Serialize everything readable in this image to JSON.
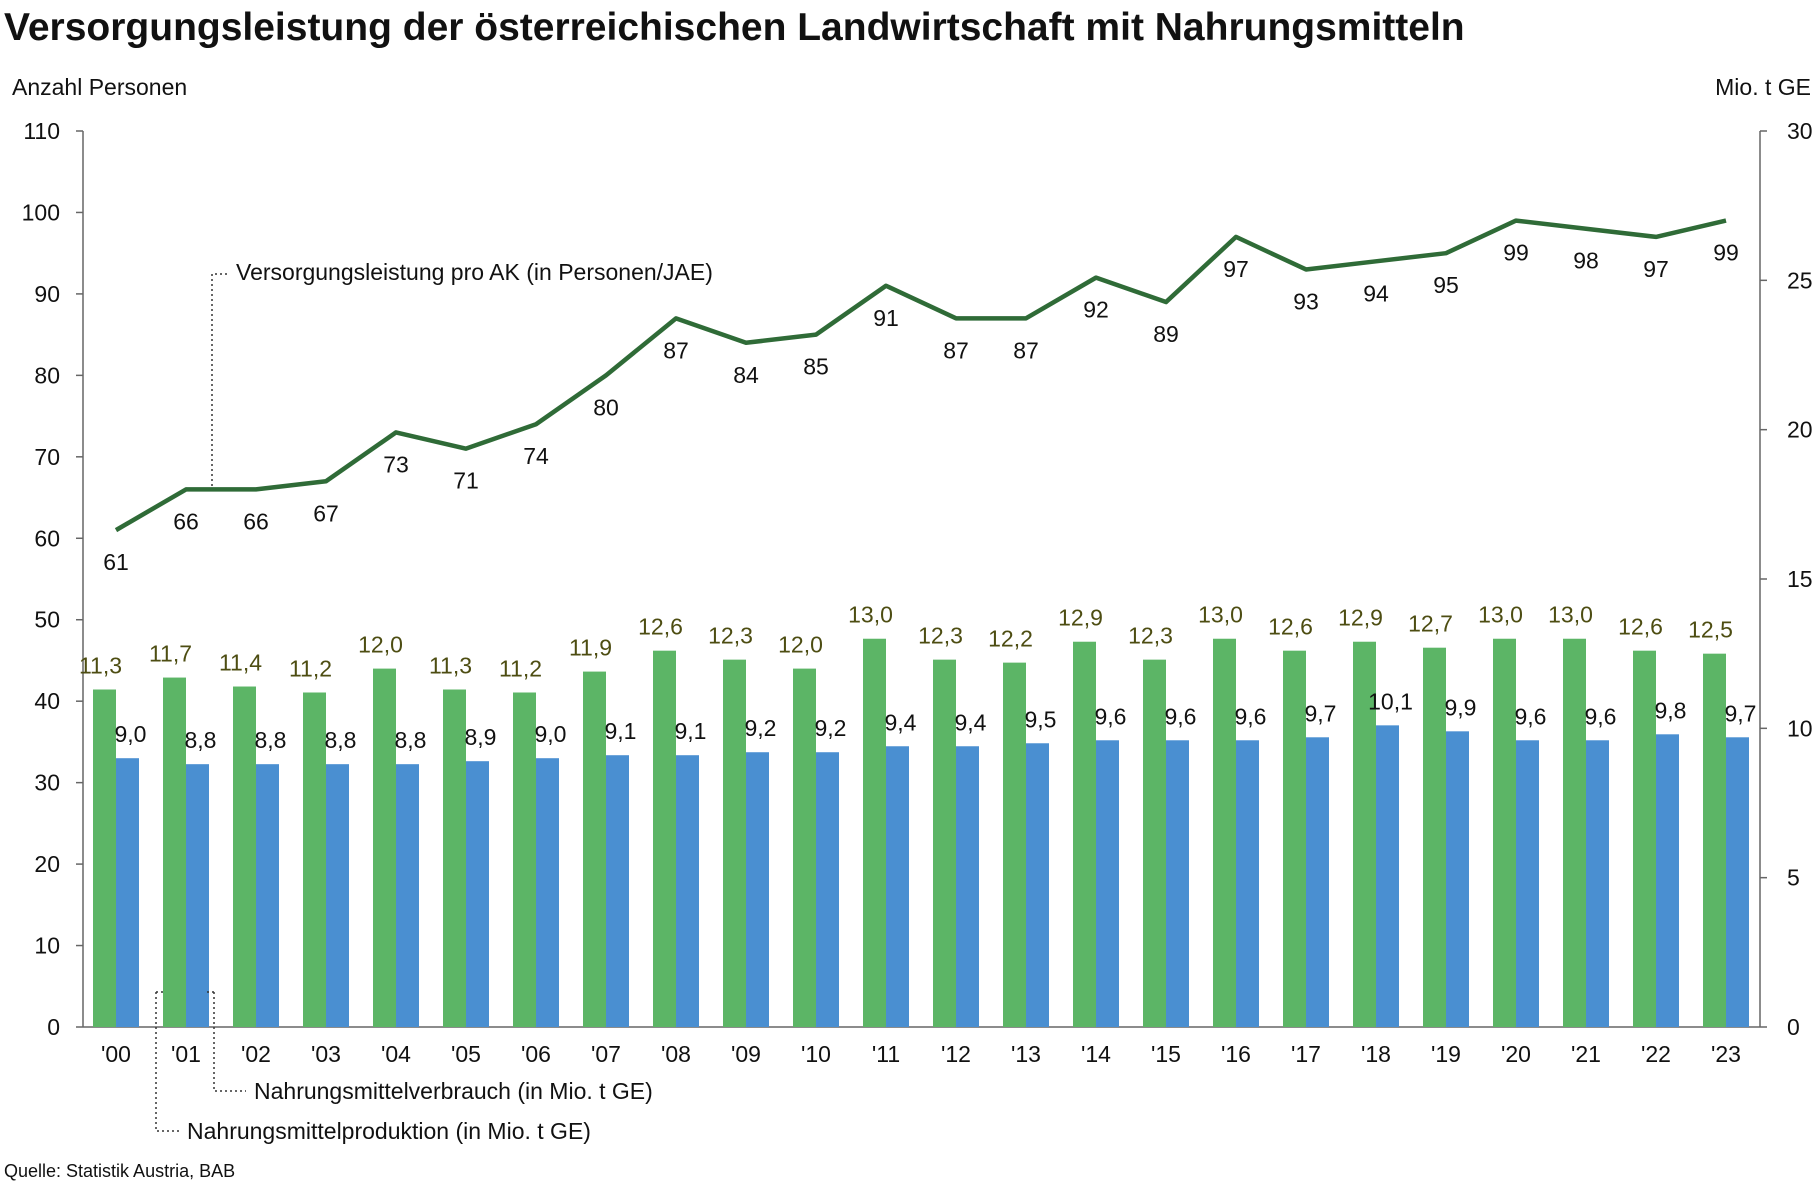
{
  "chart_data": {
    "type": "bar+line",
    "title": "Versorgungsleistung der österreichischen Landwirtschaft mit Nahrungsmitteln",
    "ylabel_left": "Anzahl Personen",
    "ylabel_right": "Mio. t GE",
    "ylim_left": [
      0,
      110
    ],
    "ylim_right": [
      0,
      30
    ],
    "yticks_left": [
      0,
      10,
      20,
      30,
      40,
      50,
      60,
      70,
      80,
      90,
      100,
      110
    ],
    "yticks_right": [
      0,
      5,
      10,
      15,
      20,
      25,
      30
    ],
    "grid": false,
    "categories": [
      "'00",
      "'01",
      "'02",
      "'03",
      "'04",
      "'05",
      "'06",
      "'07",
      "'08",
      "'09",
      "'10",
      "'11",
      "'12",
      "'13",
      "'14",
      "'15",
      "'16",
      "'17",
      "'18",
      "'19",
      "'20",
      "'21",
      "'22",
      "'23"
    ],
    "series": [
      {
        "name": "Versorgungsleistung pro AK (in Personen/JAE)",
        "type": "line",
        "axis": "left",
        "color": "#2f6b37",
        "values": [
          61,
          66,
          66,
          67,
          73,
          71,
          74,
          80,
          87,
          84,
          85,
          91,
          87,
          87,
          92,
          89,
          97,
          93,
          94,
          95,
          99,
          98,
          97,
          99
        ]
      },
      {
        "name": "Nahrungsmittelproduktion (in Mio. t GE)",
        "type": "bar",
        "axis": "right",
        "color": "#5cb566",
        "values": [
          11.3,
          11.7,
          11.4,
          11.2,
          12.0,
          11.3,
          11.2,
          11.9,
          12.6,
          12.3,
          12.0,
          13.0,
          12.3,
          12.2,
          12.9,
          12.3,
          13.0,
          12.6,
          12.9,
          12.7,
          13.0,
          13.0,
          12.6,
          12.5
        ]
      },
      {
        "name": "Nahrungsmittelverbrauch (in Mio. t GE)",
        "type": "bar",
        "axis": "right",
        "color": "#4a8fd1",
        "values": [
          9.0,
          8.8,
          8.8,
          8.8,
          8.8,
          8.9,
          9.0,
          9.1,
          9.1,
          9.2,
          9.2,
          9.4,
          9.4,
          9.5,
          9.6,
          9.6,
          9.6,
          9.7,
          10.1,
          9.9,
          9.6,
          9.6,
          9.8,
          9.7
        ]
      }
    ],
    "source": "Quelle: Statistik Austria, BAB"
  }
}
